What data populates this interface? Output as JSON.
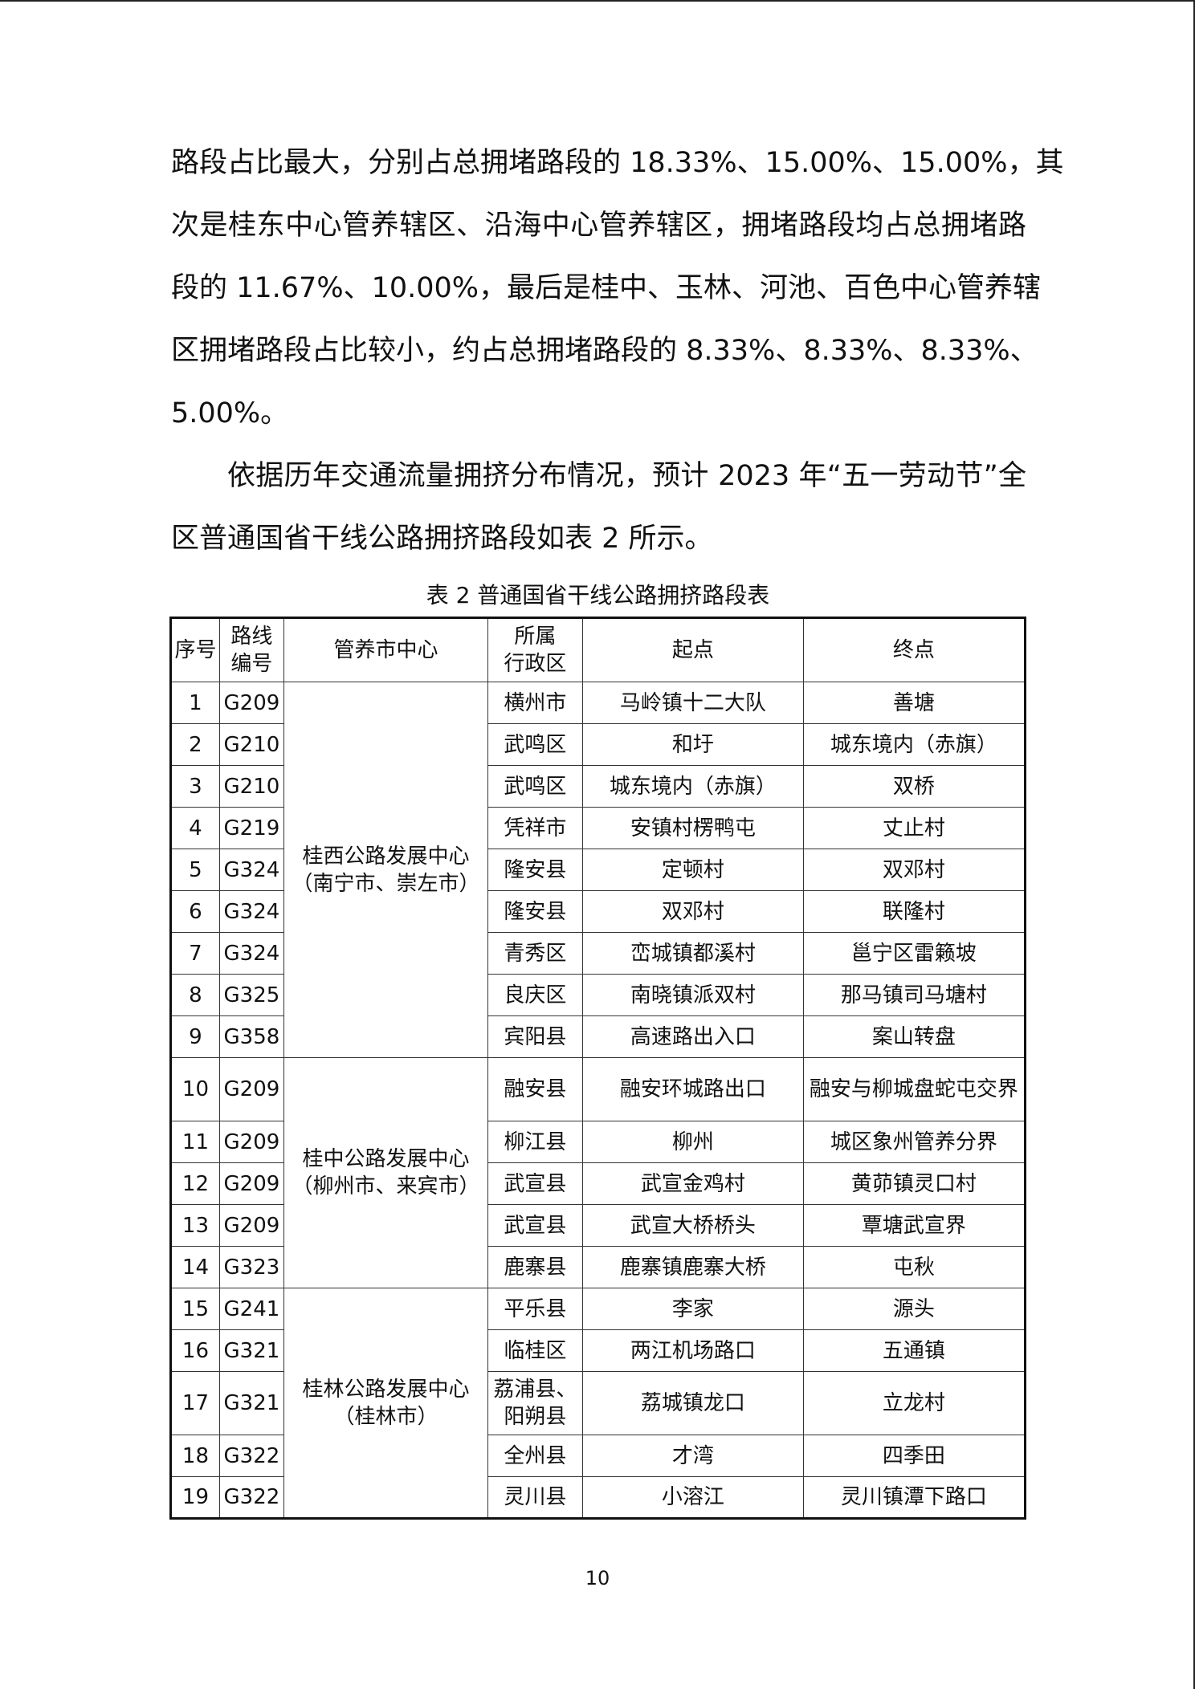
{
  "paragraph1": {
    "lines": [
      "路段占比最大，分别占总拥堵路段的 18.33%、15.00%、15.00%，其",
      "次是桂东中心管养辖区、沿海中心管养辖区，拥堵路段均占总拥堵路",
      "段的 11.67%、10.00%，最后是桂中、玉林、河池、百色中心管养辖",
      "区拥堵路段占比较小，约占总拥堵路段的 8.33%、8.33%、8.33%、",
      "5.00%。"
    ]
  },
  "paragraph2": {
    "lines": [
      "依据历年交通流量拥挤分布情况，预计 2023 年“五一劳动节”全",
      "区普通国省干线公路拥挤路段如表 2 所示。"
    ]
  },
  "table": {
    "caption": "表 2  普通国省干线公路拥挤路段表",
    "headers": [
      "序号",
      "路线编号",
      "管养市中心",
      "所属行政区",
      "起点",
      "终点"
    ],
    "header_lines": {
      "route_1": "路线",
      "route_2": "编号",
      "district_1": "所属",
      "district_2": "行政区"
    },
    "centers": [
      {
        "line1": "桂西公路发展中心",
        "line2": "（南宁市、崇左市）"
      },
      {
        "line1": "桂中公路发展中心",
        "line2": "（柳州市、来宾市）"
      },
      {
        "line1": "桂林公路发展中心",
        "line2": "（桂林市）"
      }
    ],
    "rows": [
      {
        "no": "1",
        "route": "G209",
        "district": "横州市",
        "start": "马岭镇十二大队",
        "end": "善塘"
      },
      {
        "no": "2",
        "route": "G210",
        "district": "武鸣区",
        "start": "和圩",
        "end": "城东境内（赤旗）"
      },
      {
        "no": "3",
        "route": "G210",
        "district": "武鸣区",
        "start": "城东境内（赤旗）",
        "end": "双桥"
      },
      {
        "no": "4",
        "route": "G219",
        "district": "凭祥市",
        "start": "安镇村楞鸭屯",
        "end": "丈止村"
      },
      {
        "no": "5",
        "route": "G324",
        "district": "隆安县",
        "start": "定顿村",
        "end": "双邓村"
      },
      {
        "no": "6",
        "route": "G324",
        "district": "隆安县",
        "start": "双邓村",
        "end": "联隆村"
      },
      {
        "no": "7",
        "route": "G324",
        "district": "青秀区",
        "start": "峦城镇都溪村",
        "end": "邕宁区雷籁坡"
      },
      {
        "no": "8",
        "route": "G325",
        "district": "良庆区",
        "start": "南晓镇派双村",
        "end": "那马镇司马塘村"
      },
      {
        "no": "9",
        "route": "G358",
        "district": "宾阳县",
        "start": "高速路出入口",
        "end": "案山转盘"
      },
      {
        "no": "10",
        "route": "G209",
        "district": "融安县",
        "start": "融安环城路出口",
        "end": "融安与柳城盘蛇屯交界"
      },
      {
        "no": "11",
        "route": "G209",
        "district": "柳江县",
        "start": "柳州",
        "end": "城区象州管养分界"
      },
      {
        "no": "12",
        "route": "G209",
        "district": "武宣县",
        "start": "武宣金鸡村",
        "end": "黄茆镇灵口村"
      },
      {
        "no": "13",
        "route": "G209",
        "district": "武宣县",
        "start": "武宣大桥桥头",
        "end": "覃塘武宣界"
      },
      {
        "no": "14",
        "route": "G323",
        "district": "鹿寨县",
        "start": "鹿寨镇鹿寨大桥",
        "end": "屯秋"
      },
      {
        "no": "15",
        "route": "G241",
        "district": "平乐县",
        "start": "李家",
        "end": "源头"
      },
      {
        "no": "16",
        "route": "G321",
        "district": "临桂区",
        "start": "两江机场路口",
        "end": "五通镇"
      },
      {
        "no": "17",
        "route": "G321",
        "district": "荔浦县、阳朔县",
        "start": "荔城镇龙口",
        "end": "立龙村"
      },
      {
        "no": "18",
        "route": "G322",
        "district": "全州县",
        "start": "才湾",
        "end": "四季田"
      },
      {
        "no": "19",
        "route": "G322",
        "district": "灵川县",
        "start": "小溶江",
        "end": "灵川镇潭下路口"
      }
    ]
  },
  "page_number": "10"
}
